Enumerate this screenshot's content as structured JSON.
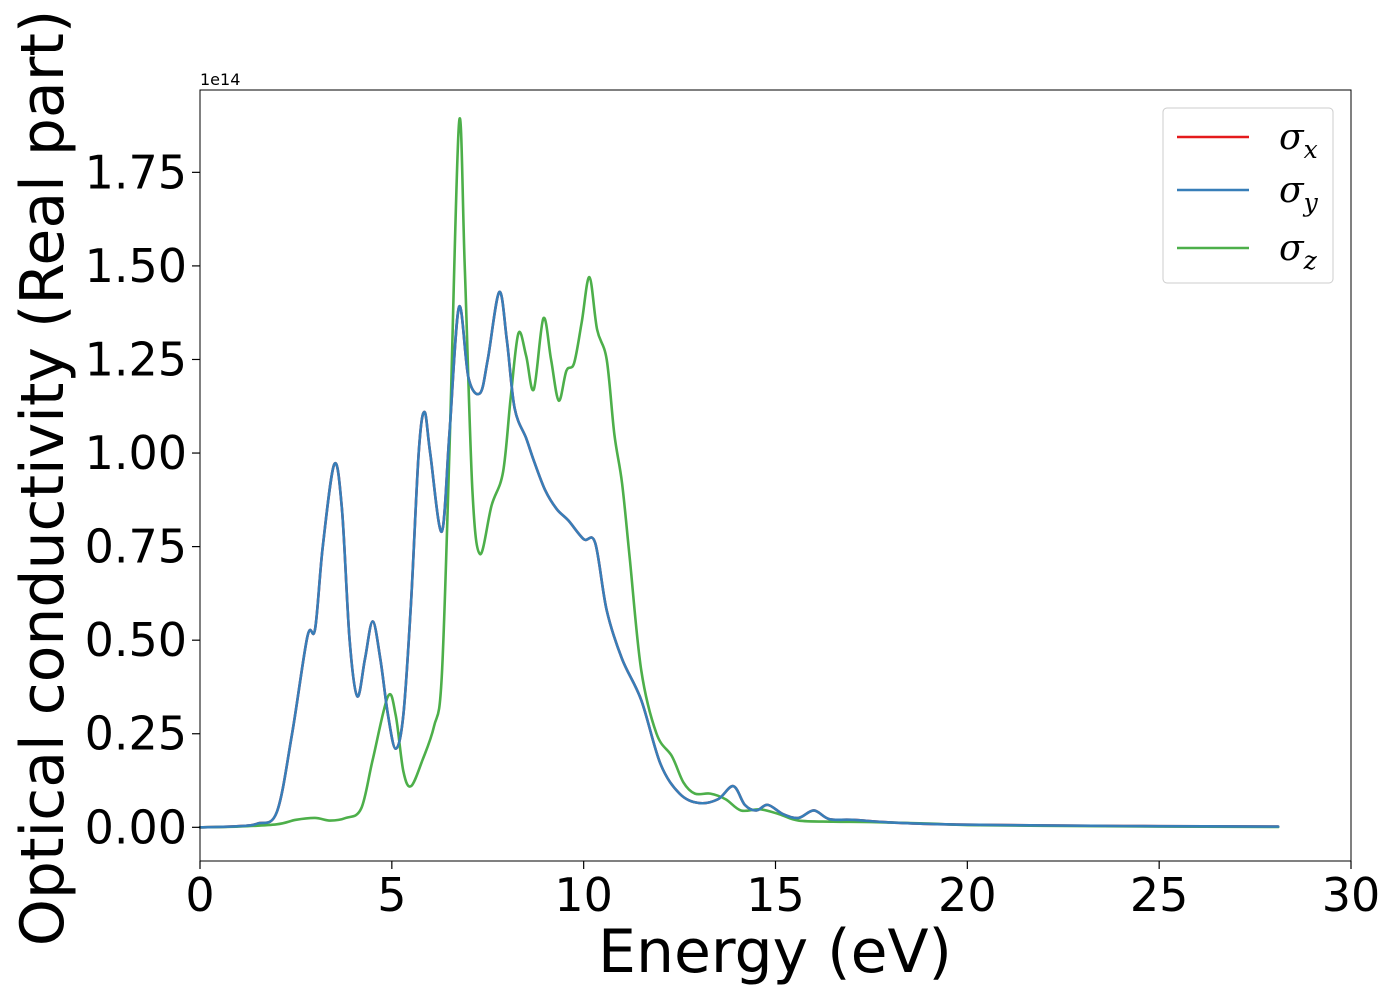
{
  "chart_data": {
    "type": "line",
    "title": "",
    "xlabel": "Energy (eV)",
    "ylabel": "Optical conductivity (Real part)",
    "y_offset_label": "1e14",
    "xlim": [
      0,
      30
    ],
    "ylim": [
      -0.09,
      1.97
    ],
    "x_ticks": [
      0,
      5,
      10,
      15,
      20,
      25,
      30
    ],
    "x_tick_labels": [
      "0",
      "5",
      "10",
      "15",
      "20",
      "25",
      "30"
    ],
    "y_ticks": [
      0.0,
      0.25,
      0.5,
      0.75,
      1.0,
      1.25,
      1.5,
      1.75
    ],
    "y_tick_labels": [
      "0.00",
      "0.25",
      "0.50",
      "0.75",
      "1.00",
      "1.25",
      "1.50",
      "1.75"
    ],
    "grid": false,
    "legend_position": "top-right",
    "series": [
      {
        "name": "σ",
        "subscript": "x",
        "color": "#e41a1c",
        "points": [
          [
            0,
            0
          ],
          [
            1,
            0.003
          ],
          [
            1.5,
            0.01
          ],
          [
            2,
            0.04
          ],
          [
            2.4,
            0.25
          ],
          [
            2.8,
            0.51
          ],
          [
            3.0,
            0.53
          ],
          [
            3.2,
            0.75
          ],
          [
            3.5,
            0.97
          ],
          [
            3.7,
            0.85
          ],
          [
            3.9,
            0.5
          ],
          [
            4.1,
            0.35
          ],
          [
            4.3,
            0.45
          ],
          [
            4.5,
            0.55
          ],
          [
            4.7,
            0.45
          ],
          [
            4.9,
            0.3
          ],
          [
            5.1,
            0.21
          ],
          [
            5.3,
            0.3
          ],
          [
            5.5,
            0.6
          ],
          [
            5.7,
            1.0
          ],
          [
            5.85,
            1.11
          ],
          [
            6.0,
            1.0
          ],
          [
            6.3,
            0.79
          ],
          [
            6.5,
            1.05
          ],
          [
            6.75,
            1.39
          ],
          [
            7.0,
            1.2
          ],
          [
            7.3,
            1.16
          ],
          [
            7.5,
            1.25
          ],
          [
            7.8,
            1.43
          ],
          [
            8.0,
            1.3
          ],
          [
            8.2,
            1.12
          ],
          [
            8.5,
            1.04
          ],
          [
            8.7,
            0.98
          ],
          [
            9.0,
            0.9
          ],
          [
            9.3,
            0.85
          ],
          [
            9.6,
            0.82
          ],
          [
            10.0,
            0.77
          ],
          [
            10.3,
            0.76
          ],
          [
            10.6,
            0.58
          ],
          [
            11.0,
            0.45
          ],
          [
            11.5,
            0.34
          ],
          [
            12.0,
            0.17
          ],
          [
            12.5,
            0.09
          ],
          [
            13.0,
            0.065
          ],
          [
            13.5,
            0.075
          ],
          [
            13.9,
            0.11
          ],
          [
            14.2,
            0.06
          ],
          [
            14.5,
            0.045
          ],
          [
            14.8,
            0.06
          ],
          [
            15.2,
            0.035
          ],
          [
            15.6,
            0.025
          ],
          [
            16.0,
            0.045
          ],
          [
            16.4,
            0.022
          ],
          [
            17,
            0.02
          ],
          [
            18,
            0.013
          ],
          [
            19,
            0.009
          ],
          [
            20,
            0.007
          ],
          [
            22,
            0.005
          ],
          [
            25,
            0.003
          ],
          [
            28.1,
            0.002
          ]
        ]
      },
      {
        "name": "σ",
        "subscript": "y",
        "color": "#377eb8",
        "points": [
          [
            0,
            0
          ],
          [
            1,
            0.003
          ],
          [
            1.5,
            0.01
          ],
          [
            2,
            0.04
          ],
          [
            2.4,
            0.25
          ],
          [
            2.8,
            0.51
          ],
          [
            3.0,
            0.53
          ],
          [
            3.2,
            0.75
          ],
          [
            3.5,
            0.97
          ],
          [
            3.7,
            0.85
          ],
          [
            3.9,
            0.5
          ],
          [
            4.1,
            0.35
          ],
          [
            4.3,
            0.45
          ],
          [
            4.5,
            0.55
          ],
          [
            4.7,
            0.45
          ],
          [
            4.9,
            0.3
          ],
          [
            5.1,
            0.21
          ],
          [
            5.3,
            0.3
          ],
          [
            5.5,
            0.6
          ],
          [
            5.7,
            1.0
          ],
          [
            5.85,
            1.11
          ],
          [
            6.0,
            1.0
          ],
          [
            6.3,
            0.79
          ],
          [
            6.5,
            1.05
          ],
          [
            6.75,
            1.39
          ],
          [
            7.0,
            1.2
          ],
          [
            7.3,
            1.16
          ],
          [
            7.5,
            1.25
          ],
          [
            7.8,
            1.43
          ],
          [
            8.0,
            1.3
          ],
          [
            8.2,
            1.12
          ],
          [
            8.5,
            1.04
          ],
          [
            8.7,
            0.98
          ],
          [
            9.0,
            0.9
          ],
          [
            9.3,
            0.85
          ],
          [
            9.6,
            0.82
          ],
          [
            10.0,
            0.77
          ],
          [
            10.3,
            0.76
          ],
          [
            10.6,
            0.58
          ],
          [
            11.0,
            0.45
          ],
          [
            11.5,
            0.34
          ],
          [
            12.0,
            0.17
          ],
          [
            12.5,
            0.09
          ],
          [
            13.0,
            0.065
          ],
          [
            13.5,
            0.075
          ],
          [
            13.9,
            0.11
          ],
          [
            14.2,
            0.06
          ],
          [
            14.5,
            0.045
          ],
          [
            14.8,
            0.06
          ],
          [
            15.2,
            0.035
          ],
          [
            15.6,
            0.025
          ],
          [
            16.0,
            0.045
          ],
          [
            16.4,
            0.022
          ],
          [
            17,
            0.02
          ],
          [
            18,
            0.013
          ],
          [
            19,
            0.009
          ],
          [
            20,
            0.007
          ],
          [
            22,
            0.005
          ],
          [
            25,
            0.003
          ],
          [
            28.1,
            0.002
          ]
        ]
      },
      {
        "name": "σ",
        "subscript": "z",
        "color": "#4daf4a",
        "points": [
          [
            0,
            0
          ],
          [
            1,
            0.002
          ],
          [
            2,
            0.008
          ],
          [
            2.5,
            0.02
          ],
          [
            3.0,
            0.025
          ],
          [
            3.4,
            0.018
          ],
          [
            3.8,
            0.025
          ],
          [
            4.2,
            0.05
          ],
          [
            4.5,
            0.18
          ],
          [
            4.9,
            0.35
          ],
          [
            5.1,
            0.3
          ],
          [
            5.3,
            0.15
          ],
          [
            5.5,
            0.11
          ],
          [
            5.8,
            0.18
          ],
          [
            6.1,
            0.27
          ],
          [
            6.3,
            0.4
          ],
          [
            6.5,
            1.0
          ],
          [
            6.75,
            1.88
          ],
          [
            6.9,
            1.5
          ],
          [
            7.1,
            0.9
          ],
          [
            7.3,
            0.73
          ],
          [
            7.6,
            0.86
          ],
          [
            7.9,
            0.95
          ],
          [
            8.1,
            1.15
          ],
          [
            8.3,
            1.32
          ],
          [
            8.5,
            1.26
          ],
          [
            8.7,
            1.17
          ],
          [
            8.95,
            1.36
          ],
          [
            9.15,
            1.25
          ],
          [
            9.35,
            1.14
          ],
          [
            9.55,
            1.22
          ],
          [
            9.75,
            1.24
          ],
          [
            9.95,
            1.35
          ],
          [
            10.15,
            1.47
          ],
          [
            10.35,
            1.33
          ],
          [
            10.6,
            1.25
          ],
          [
            10.8,
            1.05
          ],
          [
            11.0,
            0.92
          ],
          [
            11.2,
            0.72
          ],
          [
            11.5,
            0.42
          ],
          [
            11.9,
            0.25
          ],
          [
            12.3,
            0.19
          ],
          [
            12.6,
            0.12
          ],
          [
            12.9,
            0.09
          ],
          [
            13.3,
            0.09
          ],
          [
            13.7,
            0.075
          ],
          [
            14.1,
            0.045
          ],
          [
            14.6,
            0.048
          ],
          [
            15.1,
            0.035
          ],
          [
            15.6,
            0.018
          ],
          [
            16.5,
            0.015
          ],
          [
            17.5,
            0.014
          ],
          [
            19,
            0.01
          ],
          [
            20,
            0.006
          ],
          [
            22,
            0.004
          ],
          [
            25,
            0.002
          ],
          [
            28.1,
            0.001
          ]
        ]
      }
    ]
  }
}
